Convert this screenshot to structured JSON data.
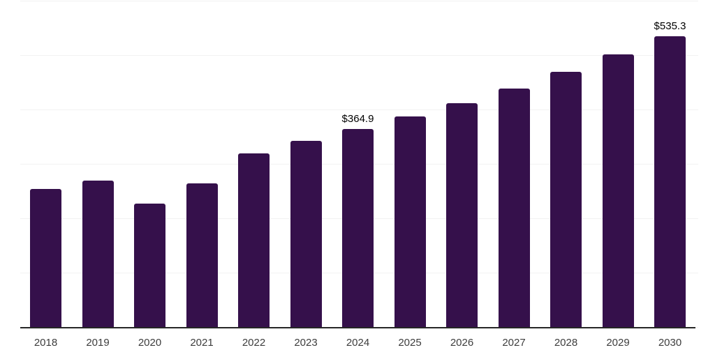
{
  "chart_data": {
    "type": "bar",
    "title": "",
    "xlabel": "",
    "ylabel": "",
    "categories": [
      "2018",
      "2019",
      "2020",
      "2021",
      "2022",
      "2023",
      "2024",
      "2025",
      "2026",
      "2027",
      "2028",
      "2029",
      "2030"
    ],
    "values": [
      255,
      271,
      228,
      266,
      321,
      344,
      364.9,
      388,
      413,
      440,
      470,
      502,
      535.3
    ],
    "data_labels": [
      "",
      "",
      "",
      "",
      "",
      "",
      "$364.9",
      "",
      "",
      "",
      "",
      "",
      "$535.3"
    ],
    "ylim": [
      0,
      600
    ],
    "grid_step": 100,
    "grid": true,
    "legend": "none",
    "colors": {
      "bar": "#35104B",
      "gridline": "#f2f2f2",
      "axis_line": "#262626",
      "tick_label": "#3d3d3d",
      "data_label": "#000000",
      "background": "#ffffff"
    }
  }
}
